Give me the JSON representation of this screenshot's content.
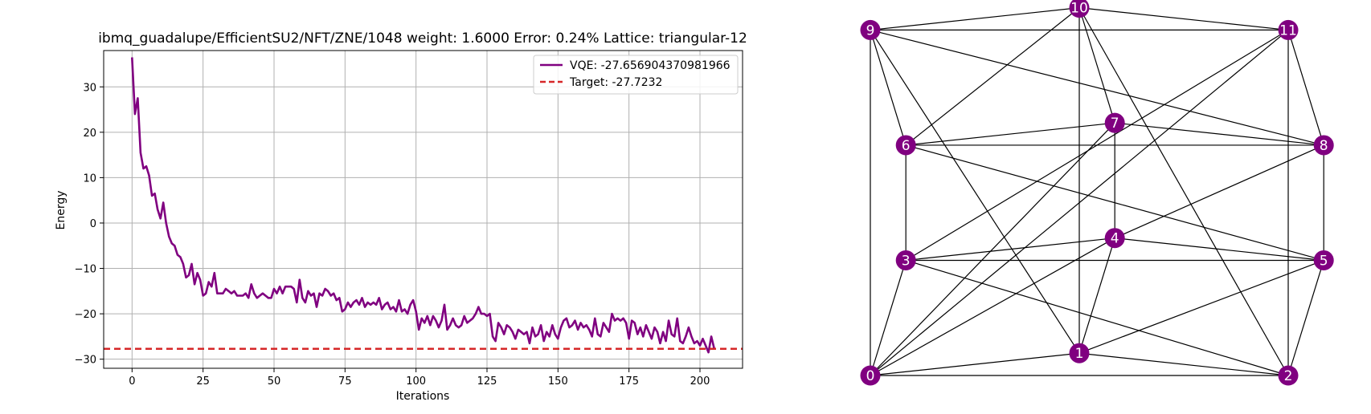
{
  "chart_data": [
    {
      "type": "line",
      "title": "ibmq_guadalupe/EfficientSU2/NFT/ZNE/1048 weight: 1.6000 Error: 0.24% Lattice: triangular-12",
      "xlabel": "Iterations",
      "ylabel": "Energy",
      "xlim": [
        -10,
        215
      ],
      "ylim": [
        -32,
        38
      ],
      "xticks": [
        "0",
        "25",
        "50",
        "75",
        "100",
        "125",
        "150",
        "175",
        "200"
      ],
      "yticks": [
        "30",
        "20",
        "10",
        "0",
        "−10",
        "−20",
        "−30"
      ],
      "xtick_values": [
        0,
        25,
        50,
        75,
        100,
        125,
        150,
        175,
        200
      ],
      "ytick_values": [
        30,
        20,
        10,
        0,
        -10,
        -20,
        -30
      ],
      "grid": true,
      "legend_position": "upper-right",
      "series": [
        {
          "name": "VQE: -27.656904370981966",
          "style": "solid",
          "color": "#800080",
          "x_start": 0,
          "values": [
            36.5,
            24.0,
            27.5,
            15.5,
            12.0,
            12.5,
            10.5,
            6.0,
            6.5,
            3.0,
            1.0,
            4.5,
            0.0,
            -3.0,
            -4.5,
            -5.0,
            -7.0,
            -7.5,
            -9.0,
            -12.0,
            -11.5,
            -9.0,
            -13.5,
            -11.0,
            -12.5,
            -16.0,
            -15.5,
            -13.0,
            -14.0,
            -11.0,
            -15.5,
            -15.5,
            -15.5,
            -14.5,
            -15.0,
            -15.5,
            -15.0,
            -16.0,
            -16.0,
            -16.0,
            -15.5,
            -16.5,
            -13.5,
            -15.5,
            -16.5,
            -16.0,
            -15.5,
            -16.0,
            -16.5,
            -16.5,
            -14.5,
            -15.5,
            -14.0,
            -15.5,
            -14.0,
            -14.0,
            -14.0,
            -14.5,
            -17.5,
            -12.5,
            -16.5,
            -17.5,
            -15.0,
            -16.0,
            -15.5,
            -18.5,
            -15.5,
            -16.0,
            -14.5,
            -15.0,
            -16.0,
            -15.5,
            -17.0,
            -16.5,
            -19.5,
            -19.0,
            -17.5,
            -18.5,
            -17.5,
            -17.0,
            -18.0,
            -16.5,
            -18.5,
            -17.5,
            -18.0,
            -17.5,
            -18.0,
            -16.5,
            -19.0,
            -18.0,
            -17.5,
            -19.0,
            -18.5,
            -19.5,
            -17.0,
            -19.5,
            -19.0,
            -20.0,
            -18.0,
            -17.0,
            -19.5,
            -23.5,
            -21.0,
            -22.0,
            -20.5,
            -22.5,
            -20.5,
            -21.5,
            -23.0,
            -21.5,
            -18.0,
            -23.5,
            -22.5,
            -21.0,
            -22.5,
            -23.0,
            -22.5,
            -20.5,
            -22.0,
            -21.5,
            -21.0,
            -20.0,
            -18.5,
            -20.0,
            -20.0,
            -20.5,
            -20.0,
            -25.0,
            -26.0,
            -22.0,
            -23.0,
            -24.5,
            -22.5,
            -23.0,
            -24.0,
            -25.5,
            -23.5,
            -24.0,
            -24.5,
            -24.0,
            -26.5,
            -23.0,
            -25.0,
            -24.5,
            -22.5,
            -26.0,
            -24.0,
            -25.0,
            -22.5,
            -24.5,
            -25.5,
            -23.0,
            -21.5,
            -21.0,
            -23.0,
            -22.5,
            -21.5,
            -23.5,
            -22.0,
            -23.0,
            -22.5,
            -23.5,
            -25.0,
            -21.0,
            -24.5,
            -25.0,
            -22.0,
            -23.0,
            -24.0,
            -20.0,
            -21.5,
            -21.0,
            -21.5,
            -21.0,
            -22.0,
            -25.5,
            -21.5,
            -22.0,
            -24.5,
            -23.0,
            -25.0,
            -22.5,
            -24.0,
            -25.5,
            -23.0,
            -24.0,
            -26.5,
            -24.0,
            -26.0,
            -21.5,
            -24.5,
            -25.0,
            -21.0,
            -26.0,
            -26.5,
            -25.0,
            -23.0,
            -25.0,
            -26.5,
            -26.0,
            -27.0,
            -25.5,
            -27.0,
            -28.5,
            -25.0,
            -27.6569
          ]
        },
        {
          "name": "Target: -27.7232",
          "style": "dashed",
          "color": "#d62728",
          "constant": -27.7232
        }
      ]
    },
    {
      "type": "graph",
      "node_color": "#800080",
      "nodes": [
        {
          "label": "0",
          "x": 0,
          "y": 0
        },
        {
          "label": "1",
          "x": 0.5,
          "y": 0.06
        },
        {
          "label": "2",
          "x": 1.0,
          "y": 0
        },
        {
          "label": "3",
          "x": 0.085,
          "y": 0.31
        },
        {
          "label": "4",
          "x": 0.585,
          "y": 0.37
        },
        {
          "label": "5",
          "x": 1.085,
          "y": 0.31
        },
        {
          "label": "6",
          "x": 0.085,
          "y": 0.62
        },
        {
          "label": "7",
          "x": 0.585,
          "y": 0.68
        },
        {
          "label": "8",
          "x": 1.085,
          "y": 0.62
        },
        {
          "label": "9",
          "x": 0,
          "y": 0.93
        },
        {
          "label": "10",
          "x": 0.5,
          "y": 0.99
        },
        {
          "label": "11",
          "x": 1.0,
          "y": 0.93
        }
      ],
      "edges": [
        [
          0,
          1
        ],
        [
          0,
          2
        ],
        [
          0,
          3
        ],
        [
          0,
          4
        ],
        [
          0,
          7
        ],
        [
          0,
          9
        ],
        [
          0,
          11
        ],
        [
          1,
          2
        ],
        [
          1,
          4
        ],
        [
          1,
          5
        ],
        [
          1,
          9
        ],
        [
          1,
          10
        ],
        [
          2,
          3
        ],
        [
          2,
          5
        ],
        [
          2,
          10
        ],
        [
          2,
          11
        ],
        [
          3,
          4
        ],
        [
          3,
          5
        ],
        [
          3,
          6
        ],
        [
          3,
          11
        ],
        [
          4,
          5
        ],
        [
          4,
          7
        ],
        [
          4,
          8
        ],
        [
          5,
          6
        ],
        [
          5,
          8
        ],
        [
          6,
          7
        ],
        [
          6,
          8
        ],
        [
          6,
          9
        ],
        [
          6,
          10
        ],
        [
          7,
          8
        ],
        [
          7,
          10
        ],
        [
          8,
          9
        ],
        [
          8,
          11
        ],
        [
          9,
          10
        ],
        [
          9,
          11
        ],
        [
          10,
          11
        ]
      ]
    }
  ]
}
